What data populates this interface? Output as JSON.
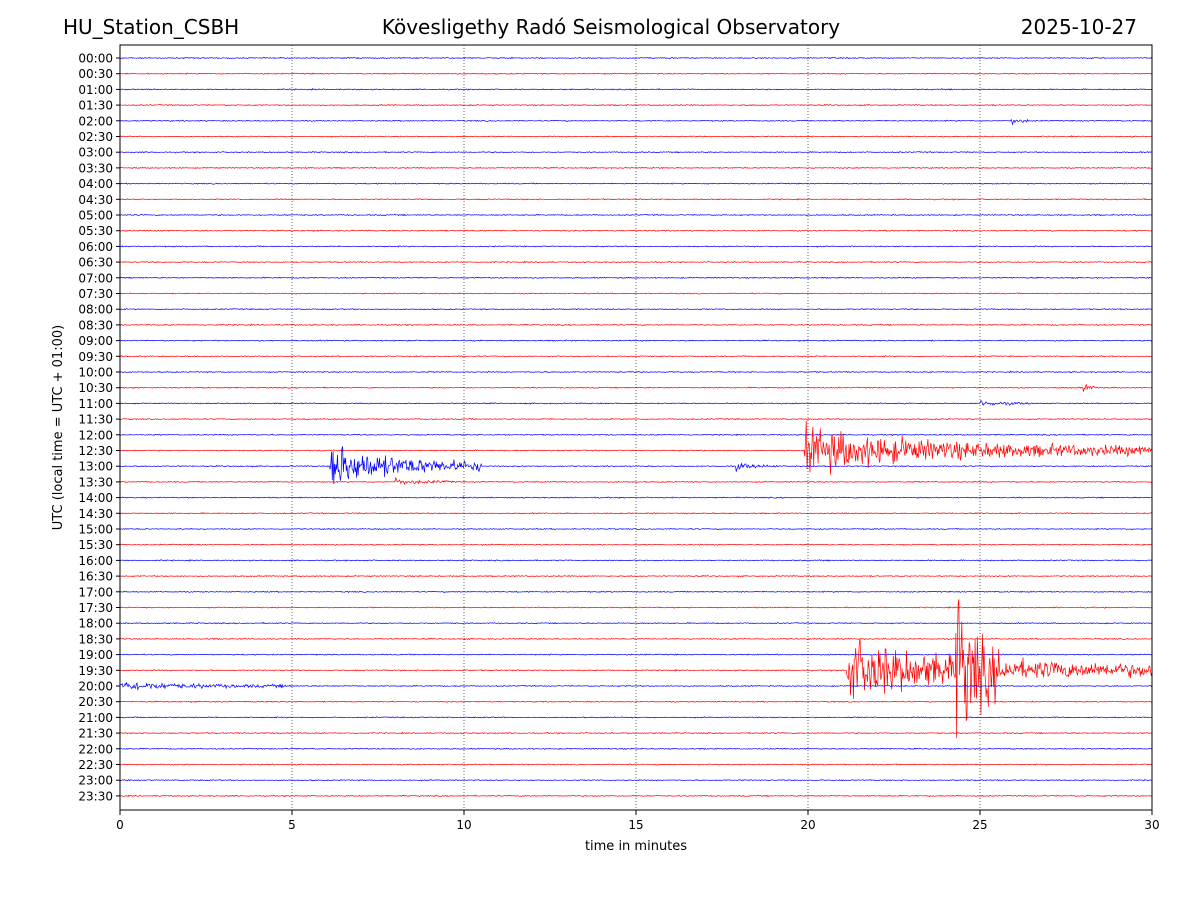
{
  "header": {
    "station": "HU_Station_CSBH",
    "observatory": "Kövesligethy Radó Seismological Observatory",
    "date": "2025-10-27"
  },
  "chart_data": {
    "type": "line",
    "subtype": "helicorder",
    "xlabel": "time in minutes",
    "ylabel": "UTC (local time = UTC + 01:00)",
    "xlim": [
      0,
      30
    ],
    "x_ticks": [
      "0",
      "5",
      "10",
      "15",
      "20",
      "25",
      "30"
    ],
    "vertical_gridlines": "dotted at each x tick",
    "row_labels": [
      "00:00",
      "00:30",
      "01:00",
      "01:30",
      "02:00",
      "02:30",
      "03:00",
      "03:30",
      "04:00",
      "04:30",
      "05:00",
      "05:30",
      "06:00",
      "06:30",
      "07:00",
      "07:30",
      "08:00",
      "08:30",
      "09:00",
      "09:30",
      "10:00",
      "10:30",
      "11:00",
      "11:30",
      "12:00",
      "12:30",
      "13:00",
      "13:30",
      "14:00",
      "14:30",
      "15:00",
      "15:30",
      "16:00",
      "16:30",
      "17:00",
      "17:30",
      "18:00",
      "18:30",
      "19:00",
      "19:30",
      "20:00",
      "20:30",
      "21:00",
      "21:30",
      "22:00",
      "22:30",
      "23:00",
      "23:30"
    ],
    "trace_colors": [
      "#0000ff",
      "#ff0000"
    ],
    "events": [
      {
        "row": "02:00",
        "start_min": 25.9,
        "end_min": 26.4,
        "amplitude": 0.5
      },
      {
        "row": "10:30",
        "start_min": 28.0,
        "end_min": 28.5,
        "amplitude": 0.4
      },
      {
        "row": "11:00",
        "start_min": 25.0,
        "end_min": 26.5,
        "amplitude": 0.3
      },
      {
        "row": "12:30",
        "start_min": 19.9,
        "end_min": 30.0,
        "amplitude": 2.5
      },
      {
        "row": "13:00",
        "start_min": 6.1,
        "end_min": 10.5,
        "amplitude": 2.6
      },
      {
        "row": "13:00",
        "start_min": 17.9,
        "end_min": 19.1,
        "amplitude": 0.4
      },
      {
        "row": "13:30",
        "start_min": 8.0,
        "end_min": 9.7,
        "amplitude": 0.35
      },
      {
        "row": "19:30",
        "start_min": 21.1,
        "end_min": 30.0,
        "amplitude": 3.5
      },
      {
        "row": "19:30",
        "start_min": 24.3,
        "end_min": 25.6,
        "amplitude": 8.0
      },
      {
        "row": "20:00",
        "start_min": 0.0,
        "end_min": 5.0,
        "amplitude": 0.5
      }
    ]
  }
}
